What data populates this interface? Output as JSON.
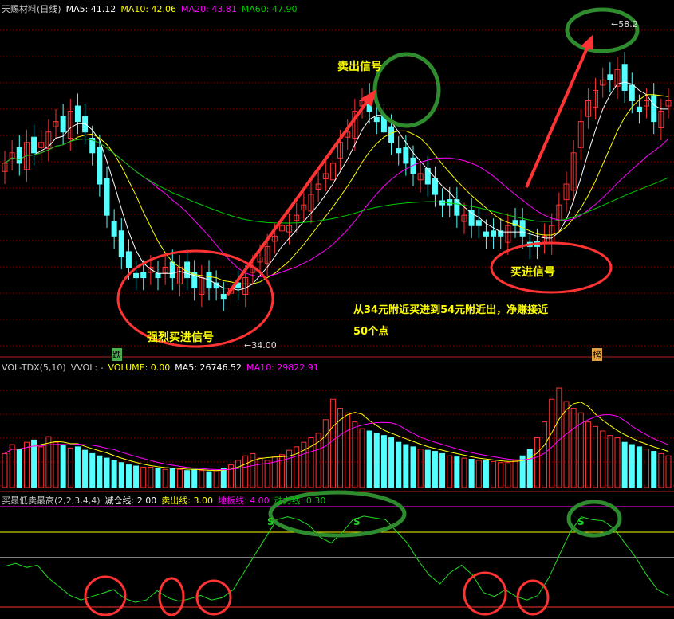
{
  "price_header": {
    "title": "天赐材料(日线)",
    "ma5": "MA5: 41.12",
    "ma10": "MA10: 42.06",
    "ma20": "MA20: 43.81",
    "ma60": "MA60: 47.90"
  },
  "volume_header": {
    "title": "VOL-TDX(5,10)",
    "vvol": "VVOL: -",
    "volume": "VOLUME: 0.00",
    "ma5": "MA5: 26746.52",
    "ma10": "MA10: 29822.91"
  },
  "indicator_header": {
    "title": "买最低卖最高(2,2,3,4,4)",
    "l1": "减仓线: 2.00",
    "l2": "卖出线: 3.00",
    "l3": "地板线: 4.00",
    "l4": "动力线: 0.30"
  },
  "annotations": {
    "sell_signal": "卖出信号",
    "buy_signal": "买进信号",
    "strong_buy": "强烈买进信号",
    "summary_line1": "从34元附近买进到54元附近出，净赚接近",
    "summary_line2": "50个点",
    "low_label": "34.00",
    "high_label": "58.2",
    "mark_die": "跌",
    "mark_bang": "榜",
    "s_marker": "S"
  },
  "colors": {
    "up": "#ff3333",
    "down": "#54ffff",
    "ma5": "#ffffff",
    "ma10": "#ffff00",
    "ma20": "#ff00ff",
    "ma60": "#00cc00",
    "annotation_circle_red": "#ff3333",
    "annotation_circle_green": "#2e8b2e",
    "grid": "#8b0000"
  },
  "chart_data": [
    {
      "type": "candlestick",
      "ylim": [
        30,
        62
      ],
      "low_point": 34.0,
      "high_point": 58.2,
      "close": [
        48,
        49,
        48,
        50,
        49,
        50,
        51,
        52,
        51,
        53,
        52,
        51,
        49,
        46,
        43,
        41,
        39,
        38,
        37,
        37,
        38,
        37,
        38,
        37,
        38,
        37,
        36,
        37,
        36,
        36,
        35,
        36,
        36,
        37,
        38,
        39,
        40,
        41,
        42,
        42,
        43,
        44,
        45,
        46,
        47,
        48,
        50,
        51,
        53,
        54,
        53,
        52,
        51,
        50,
        49,
        48,
        47,
        47,
        46,
        45,
        44,
        44,
        43,
        43,
        42,
        42,
        41,
        41,
        41,
        42,
        42,
        41,
        40,
        40,
        41,
        42,
        44,
        46,
        49,
        52,
        54,
        55,
        56,
        56,
        57,
        55,
        54,
        53,
        54,
        52,
        53,
        54
      ]
    },
    {
      "type": "bar",
      "name": "VOLUME",
      "values": [
        30,
        38,
        34,
        40,
        42,
        36,
        45,
        40,
        38,
        35,
        36,
        33,
        30,
        28,
        26,
        24,
        22,
        20,
        19,
        18,
        18,
        17,
        16,
        17,
        16,
        15,
        16,
        15,
        14,
        15,
        17,
        20,
        24,
        28,
        30,
        26,
        24,
        27,
        29,
        33,
        36,
        40,
        44,
        48,
        60,
        78,
        70,
        66,
        58,
        52,
        50,
        48,
        46,
        44,
        40,
        38,
        36,
        34,
        33,
        32,
        30,
        28,
        27,
        26,
        25,
        24,
        24,
        23,
        22,
        22,
        24,
        28,
        34,
        44,
        58,
        78,
        88,
        76,
        70,
        66,
        58,
        54,
        50,
        46,
        44,
        40,
        38,
        36,
        34,
        32,
        30,
        28
      ]
    },
    {
      "type": "line",
      "name": "动力线",
      "values": [
        0.7,
        0.75,
        0.68,
        0.72,
        0.5,
        0.35,
        0.2,
        0.12,
        0.18,
        0.24,
        0.3,
        0.15,
        0.08,
        0.12,
        0.28,
        0.16,
        0.1,
        0.14,
        0.2,
        0.12,
        0.16,
        0.3,
        0.6,
        0.9,
        1.2,
        1.5,
        1.55,
        1.5,
        1.4,
        1.2,
        1.1,
        1.28,
        1.5,
        1.56,
        1.53,
        1.5,
        1.3,
        1.1,
        0.8,
        0.55,
        0.4,
        0.6,
        0.72,
        0.55,
        0.25,
        0.18,
        0.3,
        0.18,
        0.12,
        0.2,
        0.5,
        0.9,
        1.3,
        1.55,
        1.5,
        1.48,
        1.35,
        1.1,
        0.85,
        0.55,
        0.3,
        0.2
      ]
    }
  ]
}
